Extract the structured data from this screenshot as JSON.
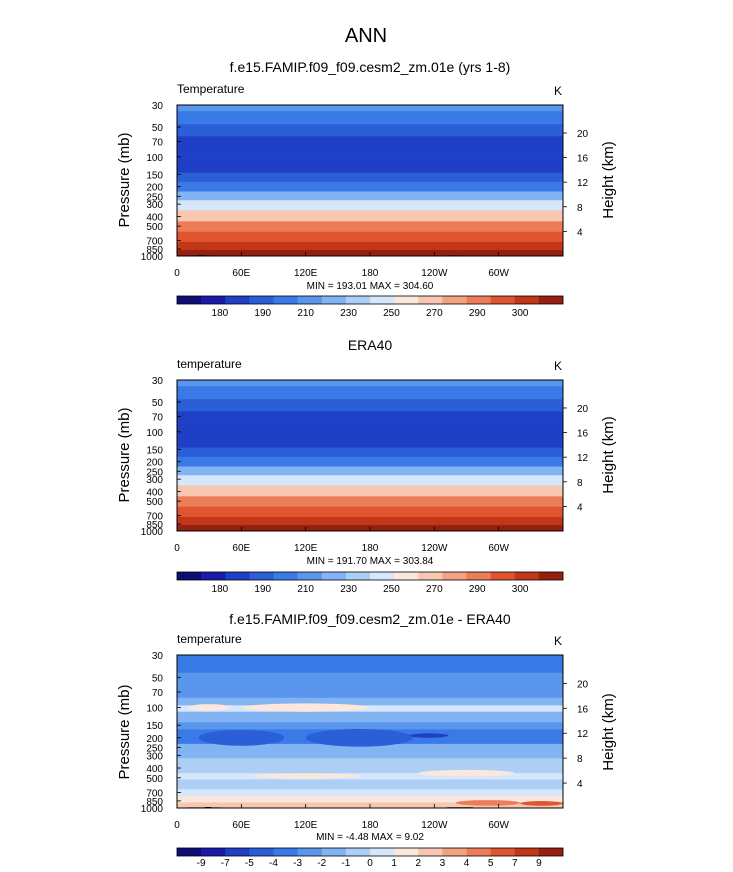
{
  "figure": {
    "title": "ANN",
    "palettes": {
      "temp": [
        "#0d0d75",
        "#1a1aa8",
        "#1e3fc6",
        "#2a5fd8",
        "#3a7ae6",
        "#5a95ee",
        "#82b3f2",
        "#adcff6",
        "#d6e7fb",
        "#fbe7dc",
        "#f8c7b1",
        "#f3a283",
        "#ed7c5a",
        "#e0542f",
        "#c2361a",
        "#951f10"
      ],
      "diff": [
        "#0d0d75",
        "#1a1aa8",
        "#1e3fc6",
        "#2a5fd8",
        "#3a7ae6",
        "#5a95ee",
        "#82b3f2",
        "#adcff6",
        "#d6e7fb",
        "#fbe7dc",
        "#f8c7b1",
        "#f3a283",
        "#ed7c5a",
        "#e0542f",
        "#c2361a",
        "#951f10"
      ]
    }
  },
  "chart_data": [
    {
      "type": "heatmap",
      "subplot": "model",
      "title": "f.e15.FAMIP.f09_f09.cesm2_zm.01e (yrs 1-8)",
      "left_label": "Temperature",
      "units_label": "K",
      "xlabel": "",
      "ylabel": "Pressure (mb)",
      "y2label": "Height (km)",
      "x_ticks": [
        "0",
        "60E",
        "120E",
        "180",
        "120W",
        "60W"
      ],
      "x_tick_lon": [
        0,
        60,
        120,
        180,
        240,
        300
      ],
      "xlim": [
        0,
        360
      ],
      "p_ticks": [
        30,
        50,
        70,
        100,
        150,
        200,
        250,
        300,
        400,
        500,
        700,
        850,
        1000
      ],
      "ylim": [
        1000,
        30
      ],
      "height_ticks_km": [
        4,
        8,
        12,
        16,
        20
      ],
      "stats_label": "MIN = 193.01   MAX = 304.60",
      "min": 193.01,
      "max": 304.6,
      "palette": "temp",
      "colorbar_labels": [
        "180",
        "190",
        "210",
        "230",
        "250",
        "270",
        "290",
        "300"
      ],
      "profile_level_indices": [
        5,
        4,
        3,
        2,
        2,
        2,
        3,
        4,
        6,
        8,
        10,
        12,
        13,
        14,
        15
      ],
      "profile_p": [
        30,
        40,
        55,
        70,
        100,
        130,
        160,
        200,
        250,
        300,
        400,
        500,
        650,
        800,
        950
      ],
      "topography": [
        [
          10,
          1000
        ],
        [
          10,
          985
        ],
        [
          20,
          985
        ],
        [
          20,
          978
        ],
        [
          26,
          978
        ],
        [
          26,
          985
        ],
        [
          35,
          985
        ],
        [
          35,
          1000
        ]
      ],
      "topography2": [
        [
          252,
          1000
        ],
        [
          252,
          985
        ],
        [
          265,
          985
        ],
        [
          265,
          1000
        ]
      ]
    },
    {
      "type": "heatmap",
      "subplot": "obs",
      "title": "ERA40",
      "left_label": "temperature",
      "units_label": "K",
      "xlabel": "",
      "ylabel": "Pressure (mb)",
      "y2label": "Height (km)",
      "x_ticks": [
        "0",
        "60E",
        "120E",
        "180",
        "120W",
        "60W"
      ],
      "x_tick_lon": [
        0,
        60,
        120,
        180,
        240,
        300
      ],
      "xlim": [
        0,
        360
      ],
      "p_ticks": [
        30,
        50,
        70,
        100,
        150,
        200,
        250,
        300,
        400,
        500,
        700,
        850,
        1000
      ],
      "ylim": [
        1000,
        30
      ],
      "height_ticks_km": [
        4,
        8,
        12,
        16,
        20
      ],
      "stats_label": "MIN = 191.70   MAX = 303.84",
      "min": 191.7,
      "max": 303.84,
      "palette": "temp",
      "colorbar_labels": [
        "180",
        "190",
        "210",
        "230",
        "250",
        "270",
        "290",
        "300"
      ],
      "profile_level_indices": [
        5,
        4,
        3,
        2,
        2,
        2,
        3,
        4,
        6,
        8,
        10,
        12,
        13,
        14,
        15
      ],
      "profile_p": [
        30,
        40,
        55,
        70,
        100,
        130,
        160,
        200,
        250,
        300,
        400,
        500,
        650,
        800,
        950
      ]
    },
    {
      "type": "heatmap",
      "subplot": "difference",
      "title": "f.e15.FAMIP.f09_f09.cesm2_zm.01e - ERA40",
      "left_label": "temperature",
      "units_label": "K",
      "xlabel": "",
      "ylabel": "Pressure (mb)",
      "y2label": "Height (km)",
      "x_ticks": [
        "0",
        "60E",
        "120E",
        "180",
        "120W",
        "60W"
      ],
      "x_tick_lon": [
        0,
        60,
        120,
        180,
        240,
        300
      ],
      "xlim": [
        0,
        360
      ],
      "p_ticks": [
        30,
        50,
        70,
        100,
        150,
        200,
        250,
        300,
        400,
        500,
        700,
        850,
        1000
      ],
      "ylim": [
        1000,
        30
      ],
      "height_ticks_km": [
        4,
        8,
        12,
        16,
        20
      ],
      "stats_label": "MIN =  -4.48   MAX =  9.02",
      "min": -4.48,
      "max": 9.02,
      "palette": "diff",
      "colorbar_labels": [
        "-9",
        "-7",
        "-5",
        "-4",
        "-3",
        "-2",
        "-1",
        "0",
        "1",
        "2",
        "3",
        "4",
        "5",
        "7",
        "9"
      ],
      "band_levels": [
        {
          "p_top": 30,
          "p_bot": 45,
          "level": 4
        },
        {
          "p_top": 45,
          "p_bot": 80,
          "level": 5
        },
        {
          "p_top": 80,
          "p_bot": 95,
          "level": 6
        },
        {
          "p_top": 95,
          "p_bot": 110,
          "level": 8
        },
        {
          "p_top": 110,
          "p_bot": 140,
          "level": 6
        },
        {
          "p_top": 140,
          "p_bot": 165,
          "level": 5
        },
        {
          "p_top": 165,
          "p_bot": 230,
          "level": 4
        },
        {
          "p_top": 230,
          "p_bot": 320,
          "level": 6
        },
        {
          "p_top": 320,
          "p_bot": 450,
          "level": 7
        },
        {
          "p_top": 450,
          "p_bot": 520,
          "level": 8
        },
        {
          "p_top": 520,
          "p_bot": 650,
          "level": 7
        },
        {
          "p_top": 650,
          "p_bot": 760,
          "level": 8
        },
        {
          "p_top": 760,
          "p_bot": 880,
          "level": 9
        },
        {
          "p_top": 880,
          "p_bot": 1000,
          "level": 10
        }
      ],
      "blobs": [
        {
          "lon": 120,
          "p": 100,
          "dlon": 60,
          "dp": 10,
          "level": 9
        },
        {
          "lon": 30,
          "p": 100,
          "dlon": 20,
          "dp": 8,
          "level": 9
        },
        {
          "lon": 170,
          "p": 200,
          "dlon": 50,
          "dp": 45,
          "level": 3
        },
        {
          "lon": 235,
          "p": 190,
          "dlon": 18,
          "dp": 10,
          "level": 2
        },
        {
          "lon": 60,
          "p": 200,
          "dlon": 40,
          "dp": 40,
          "level": 3
        },
        {
          "lon": 270,
          "p": 450,
          "dlon": 45,
          "dp": 35,
          "level": 9
        },
        {
          "lon": 120,
          "p": 480,
          "dlon": 50,
          "dp": 30,
          "level": 9
        },
        {
          "lon": 290,
          "p": 890,
          "dlon": 30,
          "dp": 60,
          "level": 12
        },
        {
          "lon": 340,
          "p": 900,
          "dlon": 20,
          "dp": 50,
          "level": 13
        }
      ],
      "topography": [
        [
          10,
          1000
        ],
        [
          10,
          985
        ],
        [
          26,
          985
        ],
        [
          26,
          978
        ],
        [
          32,
          978
        ],
        [
          32,
          985
        ],
        [
          40,
          985
        ],
        [
          40,
          1000
        ]
      ],
      "topography2": [
        [
          252,
          1000
        ],
        [
          252,
          982
        ],
        [
          276,
          982
        ],
        [
          276,
          1000
        ]
      ]
    }
  ]
}
